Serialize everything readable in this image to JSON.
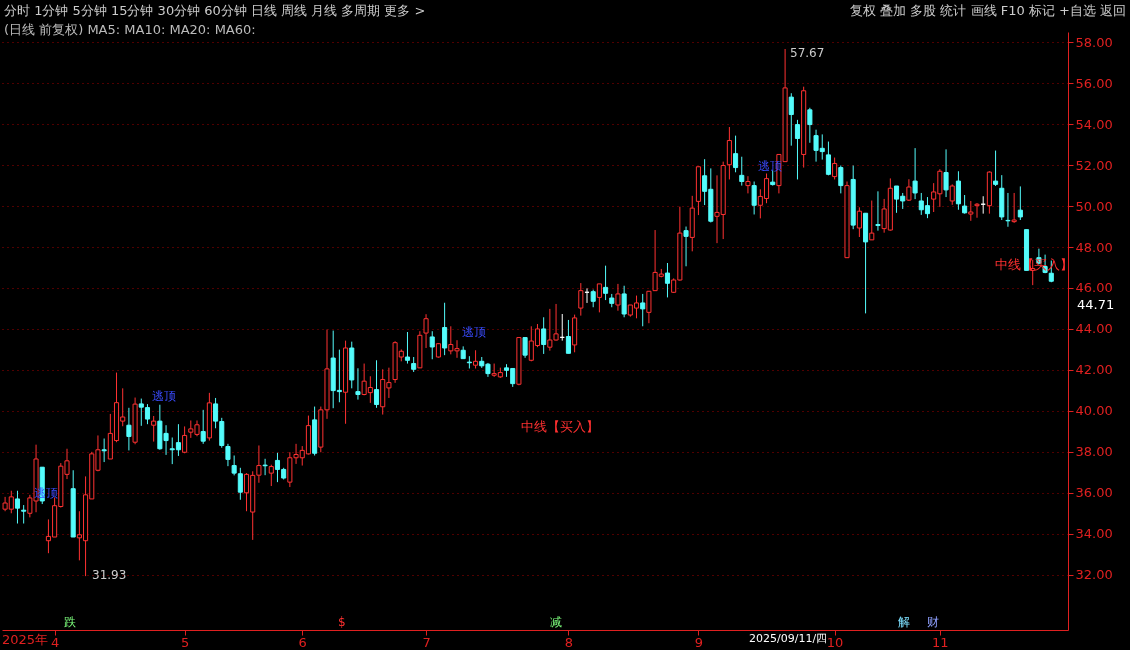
{
  "chart_data": {
    "type": "candlestick",
    "grid": "y",
    "ylim": [
      29.3,
      58.5
    ],
    "yticks": [
      {
        "value": 32,
        "label": "32.00"
      },
      {
        "value": 34,
        "label": "34.00"
      },
      {
        "value": 36,
        "label": "36.00"
      },
      {
        "value": 38,
        "label": "38.00"
      },
      {
        "value": 40,
        "label": "40.00"
      },
      {
        "value": 42,
        "label": "42.00"
      },
      {
        "value": 44,
        "label": "44.00"
      },
      {
        "value": 46,
        "label": "46.00"
      },
      {
        "value": 48,
        "label": "48.00"
      },
      {
        "value": 50,
        "label": "50.00"
      },
      {
        "value": 52,
        "label": "52.00"
      },
      {
        "value": 54,
        "label": "54.00"
      },
      {
        "value": 56,
        "label": "56.00"
      },
      {
        "value": 58,
        "label": "58.00"
      }
    ],
    "categories": [
      null,
      null,
      null,
      null,
      null,
      null,
      null,
      null,
      "4",
      null,
      null,
      null,
      null,
      null,
      null,
      null,
      null,
      null,
      null,
      null,
      null,
      null,
      null,
      null,
      null,
      null,
      null,
      null,
      null,
      "5",
      null,
      null,
      null,
      null,
      null,
      null,
      null,
      null,
      null,
      null,
      null,
      null,
      null,
      null,
      null,
      null,
      null,
      null,
      "6",
      null,
      null,
      null,
      null,
      null,
      null,
      null,
      null,
      null,
      null,
      null,
      null,
      null,
      null,
      null,
      null,
      null,
      null,
      null,
      "7",
      null,
      null,
      null,
      null,
      null,
      null,
      null,
      null,
      null,
      null,
      null,
      null,
      null,
      null,
      null,
      null,
      null,
      null,
      null,
      null,
      null,
      null,
      "8",
      null,
      null,
      null,
      null,
      null,
      null,
      null,
      null,
      null,
      null,
      null,
      null,
      null,
      null,
      null,
      null,
      null,
      null,
      null,
      null,
      "9",
      null,
      null,
      null,
      null,
      null,
      null,
      null,
      null,
      null,
      null,
      null,
      null,
      null,
      null,
      null,
      null,
      null,
      null,
      null,
      null,
      null,
      "10",
      null,
      null,
      null,
      null,
      null,
      null,
      null,
      null,
      null,
      null,
      null,
      null,
      null,
      null,
      null,
      null,
      "11",
      null,
      null,
      null,
      null,
      null,
      null,
      null,
      null,
      null,
      null,
      null,
      null,
      null,
      null,
      null,
      null,
      null,
      null
    ],
    "ohlc": [
      [
        35.2,
        35.8,
        35.1,
        35.5
      ],
      [
        35.2,
        36.1,
        35.0,
        35.8
      ],
      [
        35.7,
        36.1,
        34.5,
        35.25
      ],
      [
        35.15,
        35.4,
        34.5,
        35.1
      ],
      [
        35.0,
        35.9,
        34.8,
        35.75
      ],
      [
        35.6,
        38.35,
        35.05,
        37.65
      ],
      [
        37.25,
        37.25,
        35.45,
        35.6
      ],
      [
        33.66,
        34.7,
        33.05,
        33.87
      ],
      [
        33.84,
        35.77,
        33.84,
        35.37
      ],
      [
        35.33,
        37.45,
        35.28,
        37.3
      ],
      [
        36.9,
        38.15,
        36.67,
        37.56
      ],
      [
        36.2,
        37.1,
        33.84,
        33.84
      ],
      [
        33.8,
        35.1,
        32.7,
        33.95
      ],
      [
        33.66,
        36.8,
        31.93,
        35.9
      ],
      [
        35.7,
        38.0,
        35.7,
        37.9
      ],
      [
        37.1,
        38.8,
        37.05,
        38.1
      ],
      [
        38.1,
        38.65,
        37.5,
        38.05
      ],
      [
        37.65,
        39.85,
        37.65,
        38.9
      ],
      [
        38.55,
        41.87,
        38.47,
        40.4
      ],
      [
        39.5,
        41.1,
        39.25,
        39.7
      ],
      [
        39.3,
        40.15,
        38.07,
        38.75
      ],
      [
        38.47,
        40.65,
        38.37,
        40.33
      ],
      [
        40.34,
        40.6,
        39.27,
        40.18
      ],
      [
        40.16,
        40.33,
        39.35,
        39.6
      ],
      [
        39.3,
        39.75,
        38.5,
        39.5
      ],
      [
        39.5,
        40.3,
        38.1,
        38.15
      ],
      [
        38.9,
        39.3,
        37.85,
        38.55
      ],
      [
        38.15,
        38.7,
        37.4,
        38.1
      ],
      [
        38.45,
        39.35,
        37.8,
        38.1
      ],
      [
        37.98,
        39.24,
        37.93,
        38.8
      ],
      [
        38.96,
        39.53,
        38.68,
        39.12
      ],
      [
        38.85,
        39.53,
        38.76,
        39.32
      ],
      [
        38.99,
        40.05,
        38.39,
        38.52
      ],
      [
        38.68,
        40.88,
        38.55,
        40.39
      ],
      [
        40.34,
        40.63,
        39.15,
        39.5
      ],
      [
        39.48,
        39.66,
        38.2,
        38.31
      ],
      [
        38.26,
        38.39,
        37.3,
        37.63
      ],
      [
        37.33,
        37.82,
        36.85,
        36.96
      ],
      [
        36.93,
        37.22,
        35.66,
        36.03
      ],
      [
        36.0,
        36.96,
        35.1,
        36.9
      ],
      [
        35.06,
        37.05,
        33.7,
        36.85
      ],
      [
        36.86,
        38.31,
        36.49,
        37.33
      ],
      [
        37.35,
        37.66,
        36.86,
        37.32
      ],
      [
        36.96,
        37.37,
        36.33,
        37.28
      ],
      [
        37.58,
        37.95,
        36.52,
        37.14
      ],
      [
        37.14,
        37.22,
        36.65,
        36.72
      ],
      [
        36.52,
        37.98,
        36.28,
        37.71
      ],
      [
        37.71,
        38.39,
        37.41,
        37.87
      ],
      [
        37.71,
        38.28,
        37.33,
        38.07
      ],
      [
        37.9,
        39.77,
        37.87,
        39.28
      ],
      [
        39.56,
        40.21,
        37.82,
        37.93
      ],
      [
        38.23,
        40.21,
        37.98,
        40.05
      ],
      [
        40.05,
        43.97,
        39.61,
        42.05
      ],
      [
        42.58,
        43.92,
        40.13,
        40.99
      ],
      [
        41.0,
        42.99,
        40.42,
        40.94
      ],
      [
        40.91,
        43.43,
        39.37,
        43.07
      ],
      [
        43.07,
        43.38,
        41.1,
        41.51
      ],
      [
        40.94,
        42.08,
        40.55,
        40.8
      ],
      [
        40.8,
        42.31,
        40.76,
        41.45
      ],
      [
        40.89,
        41.69,
        40.39,
        41.14
      ],
      [
        41.04,
        42.47,
        40.15,
        40.31
      ],
      [
        40.2,
        42.03,
        39.82,
        41.53
      ],
      [
        41.12,
        42.11,
        40.63,
        41.38
      ],
      [
        41.53,
        43.4,
        41.37,
        43.33
      ],
      [
        42.63,
        43.0,
        42.42,
        42.91
      ],
      [
        42.63,
        43.85,
        42.31,
        42.47
      ],
      [
        42.31,
        42.63,
        41.9,
        42.03
      ],
      [
        42.1,
        43.89,
        42.1,
        43.69
      ],
      [
        43.8,
        44.72,
        43.07,
        44.5
      ],
      [
        43.61,
        43.89,
        42.52,
        43.12
      ],
      [
        42.63,
        43.3,
        42.6,
        43.28
      ],
      [
        44.07,
        45.28,
        42.72,
        43.07
      ],
      [
        42.93,
        44.13,
        42.76,
        43.24
      ],
      [
        42.93,
        43.45,
        42.59,
        43.04
      ],
      [
        42.96,
        43.15,
        42.55,
        42.55
      ],
      [
        42.38,
        42.67,
        42.07,
        42.35
      ],
      [
        42.23,
        42.96,
        42.07,
        42.42
      ],
      [
        42.42,
        42.63,
        42.1,
        42.2
      ],
      [
        42.28,
        42.34,
        41.66,
        41.82
      ],
      [
        41.74,
        42.31,
        41.66,
        41.82
      ],
      [
        41.66,
        42.11,
        41.61,
        41.87
      ],
      [
        42.1,
        42.28,
        41.66,
        41.98
      ],
      [
        42.07,
        42.07,
        41.17,
        41.33
      ],
      [
        41.3,
        43.58,
        41.25,
        43.58
      ],
      [
        43.58,
        43.58,
        42.59,
        42.72
      ],
      [
        42.47,
        44.13,
        42.42,
        43.41
      ],
      [
        43.19,
        44.24,
        43.11,
        44.0
      ],
      [
        44.0,
        44.57,
        42.78,
        43.24
      ],
      [
        43.11,
        44.98,
        42.94,
        43.46
      ],
      [
        43.46,
        45.22,
        43.43,
        43.76
      ],
      [
        43.59,
        44.73,
        43.43,
        43.59
      ],
      [
        43.63,
        44.44,
        42.81,
        42.81
      ],
      [
        43.22,
        44.7,
        42.86,
        44.54
      ],
      [
        45.02,
        46.24,
        44.65,
        45.87
      ],
      [
        45.79,
        45.98,
        45.27,
        45.79
      ],
      [
        45.82,
        45.92,
        45.06,
        45.35
      ],
      [
        45.54,
        46.2,
        44.81,
        46.2
      ],
      [
        46.03,
        47.09,
        45.41,
        45.74
      ],
      [
        45.51,
        45.71,
        45.06,
        45.25
      ],
      [
        45.17,
        46.2,
        44.89,
        45.71
      ],
      [
        45.71,
        46.11,
        44.57,
        44.73
      ],
      [
        44.68,
        45.17,
        44.6,
        45.17
      ],
      [
        45.02,
        45.63,
        44.52,
        45.27
      ],
      [
        45.27,
        45.71,
        44.13,
        44.98
      ],
      [
        44.81,
        45.84,
        44.28,
        45.84
      ],
      [
        45.87,
        48.83,
        45.87,
        46.76
      ],
      [
        46.57,
        46.93,
        46.52,
        46.68
      ],
      [
        46.73,
        47.22,
        45.54,
        46.23
      ],
      [
        45.79,
        46.47,
        45.76,
        46.39
      ],
      [
        46.39,
        49.97,
        46.36,
        48.68
      ],
      [
        48.8,
        49.0,
        47.06,
        48.52
      ],
      [
        48.47,
        50.5,
        47.79,
        49.9
      ],
      [
        50.23,
        51.92,
        49.56,
        51.92
      ],
      [
        51.48,
        52.29,
        50.05,
        50.72
      ],
      [
        50.82,
        51.84,
        49.2,
        49.26
      ],
      [
        49.5,
        51.5,
        48.19,
        49.69
      ],
      [
        49.59,
        52.17,
        48.39,
        51.98
      ],
      [
        52.02,
        53.86,
        51.3,
        53.2
      ],
      [
        52.56,
        53.44,
        51.65,
        51.88
      ],
      [
        51.5,
        52.41,
        51.0,
        51.2
      ],
      [
        51.0,
        51.46,
        50.62,
        51.2
      ],
      [
        51.0,
        51.2,
        49.59,
        50.04
      ],
      [
        50.04,
        50.82,
        49.4,
        50.47
      ],
      [
        50.37,
        51.59,
        50.14,
        51.34
      ],
      [
        51.17,
        51.75,
        51.0,
        51.05
      ],
      [
        51.0,
        52.52,
        50.62,
        52.52
      ],
      [
        52.17,
        57.67,
        52.17,
        55.77
      ],
      [
        55.32,
        55.51,
        52.95,
        54.47
      ],
      [
        53.98,
        54.21,
        51.3,
        53.3
      ],
      [
        52.52,
        55.83,
        51.88,
        55.63
      ],
      [
        54.7,
        54.8,
        53.09,
        53.98
      ],
      [
        53.44,
        53.73,
        52.17,
        52.72
      ],
      [
        52.82,
        53.5,
        52.27,
        52.66
      ],
      [
        52.5,
        53.15,
        51.5,
        51.55
      ],
      [
        51.44,
        52.37,
        51.3,
        52.08
      ],
      [
        51.88,
        51.98,
        50.62,
        51.0
      ],
      [
        47.48,
        51.2,
        47.48,
        51.0
      ],
      [
        51.3,
        51.98,
        48.87,
        49.07
      ],
      [
        48.93,
        49.94,
        48.49,
        49.75
      ],
      [
        49.65,
        49.65,
        44.76,
        48.25
      ],
      [
        48.35,
        50.27,
        48.35,
        48.68
      ],
      [
        49.1,
        50.72,
        48.8,
        49.05
      ],
      [
        48.9,
        50.35,
        48.7,
        49.86
      ],
      [
        48.83,
        51.35,
        48.8,
        50.87
      ],
      [
        50.98,
        50.98,
        49.67,
        50.34
      ],
      [
        50.48,
        50.64,
        49.86,
        50.25
      ],
      [
        50.29,
        51.31,
        50.25,
        50.93
      ],
      [
        51.22,
        52.83,
        50.34,
        50.64
      ],
      [
        50.25,
        50.64,
        49.57,
        49.82
      ],
      [
        50.02,
        50.44,
        49.41,
        49.63
      ],
      [
        50.34,
        51.12,
        49.71,
        50.69
      ],
      [
        50.6,
        51.8,
        49.96,
        51.7
      ],
      [
        51.64,
        52.77,
        50.44,
        50.79
      ],
      [
        50.25,
        51.06,
        50.06,
        50.98
      ],
      [
        51.22,
        51.7,
        49.82,
        50.11
      ],
      [
        50.0,
        50.54,
        49.63,
        49.67
      ],
      [
        49.61,
        50.25,
        49.28,
        49.71
      ],
      [
        50.02,
        50.15,
        49.43,
        50.09
      ],
      [
        50.09,
        50.48,
        49.63,
        50.09
      ],
      [
        50.02,
        51.7,
        49.63,
        51.66
      ],
      [
        51.22,
        52.71,
        50.98,
        51.06
      ],
      [
        50.87,
        51.51,
        49.32,
        49.47
      ],
      [
        49.3,
        50.64,
        48.99,
        49.28
      ],
      [
        49.24,
        50.64,
        49.18,
        49.32
      ],
      [
        49.8,
        50.96,
        49.32,
        49.47
      ],
      [
        48.85,
        48.85,
        46.86,
        46.86
      ],
      [
        46.86,
        47.38,
        46.14,
        46.95
      ],
      [
        47.48,
        47.92,
        47.15,
        47.21
      ],
      [
        47.05,
        47.63,
        46.72,
        46.76
      ],
      [
        46.72,
        47.34,
        46.28,
        46.33
      ]
    ],
    "colors": [
      "#ff3232",
      "#ff3232",
      "#54fcfc",
      "#54fcfc",
      "#ff3232",
      "#ff3232",
      "#54fcfc",
      "#ff3232",
      "#ff3232",
      "#ff3232",
      "#ff3232",
      "#54fcfc",
      "#ff3232",
      "#ff3232",
      "#ff3232",
      "#ff3232",
      "#54fcfc",
      "#ff3232",
      "#ff3232",
      "#ff3232",
      "#54fcfc",
      "#ff3232",
      "#54fcfc",
      "#54fcfc",
      "#ff3232",
      "#54fcfc",
      "#54fcfc",
      "#54fcfc",
      "#54fcfc",
      "#ff3232",
      "#ff3232",
      "#ff3232",
      "#54fcfc",
      "#ff3232",
      "#54fcfc",
      "#54fcfc",
      "#54fcfc",
      "#54fcfc",
      "#54fcfc",
      "#ff3232",
      "#ff3232",
      "#ff3232",
      "#54fcfc",
      "#ff3232",
      "#54fcfc",
      "#54fcfc",
      "#ff3232",
      "#ff3232",
      "#ff3232",
      "#ff3232",
      "#54fcfc",
      "#ff3232",
      "#ff3232",
      "#54fcfc",
      "#54fcfc",
      "#ff3232",
      "#54fcfc",
      "#54fcfc",
      "#ff3232",
      "#ff3232",
      "#54fcfc",
      "#ff3232",
      "#ff3232",
      "#ff3232",
      "#ff3232",
      "#54fcfc",
      "#54fcfc",
      "#ff3232",
      "#ff3232",
      "#54fcfc",
      "#ff3232",
      "#54fcfc",
      "#ff3232",
      "#ff3232",
      "#54fcfc",
      "#54fcfc",
      "#ff3232",
      "#54fcfc",
      "#54fcfc",
      "#ff3232",
      "#ff3232",
      "#54fcfc",
      "#54fcfc",
      "#ff3232",
      "#54fcfc",
      "#ff3232",
      "#ff3232",
      "#54fcfc",
      "#ff3232",
      "#ff3232",
      "#ffffff",
      "#54fcfc",
      "#ff3232",
      "#ff3232",
      "#ffffff",
      "#54fcfc",
      "#ff3232",
      "#54fcfc",
      "#54fcfc",
      "#ff3232",
      "#54fcfc",
      "#ff3232",
      "#ff3232",
      "#54fcfc",
      "#ff3232",
      "#ff3232",
      "#ff3232",
      "#54fcfc",
      "#ff3232",
      "#ff3232",
      "#54fcfc",
      "#ff3232",
      "#ff3232",
      "#54fcfc",
      "#54fcfc",
      "#ff3232",
      "#ff3232",
      "#ff3232",
      "#54fcfc",
      "#54fcfc",
      "#ff3232",
      "#54fcfc",
      "#ff3232",
      "#ff3232",
      "#54fcfc",
      "#ff3232",
      "#ff3232",
      "#54fcfc",
      "#54fcfc",
      "#ff3232",
      "#54fcfc",
      "#54fcfc",
      "#54fcfc",
      "#54fcfc",
      "#ff3232",
      "#54fcfc",
      "#ff3232",
      "#54fcfc",
      "#ff3232",
      "#54fcfc",
      "#ff3232",
      "#54fcfc",
      "#ff3232",
      "#ff3232",
      "#54fcfc",
      "#54fcfc",
      "#ff3232",
      "#54fcfc",
      "#54fcfc",
      "#54fcfc",
      "#ff3232",
      "#ff3232",
      "#54fcfc",
      "#ff3232",
      "#54fcfc",
      "#54fcfc",
      "#ff3232",
      "#ff3232",
      "#ffffff",
      "#ff3232",
      "#54fcfc",
      "#54fcfc",
      "#54fcfc",
      "#ff3232",
      "#54fcfc",
      "#54fcfc",
      "#ff3232",
      "#54fcfc",
      "#54fcfc",
      "#54fcfc"
    ],
    "annotations": [
      "分时  1分钟  5分钟  15分钟  30分钟  60分钟  日线  周线  月线  多周期  更多 >",
      "复权  叠加  多股  统计  画线  F10  标记  +自选  返回",
      "(日线 前复权)  MA5:  MA10:  MA20:  MA60:",
      "2025年",
      "31.93",
      "57.67",
      "逃顶",
      "逃顶",
      "逃顶",
      "逃顶",
      "中线【买入】",
      "中线【买入】",
      "跌",
      "$",
      "减",
      "解",
      "财",
      "2025/09/11/四",
      "44.71"
    ]
  }
}
